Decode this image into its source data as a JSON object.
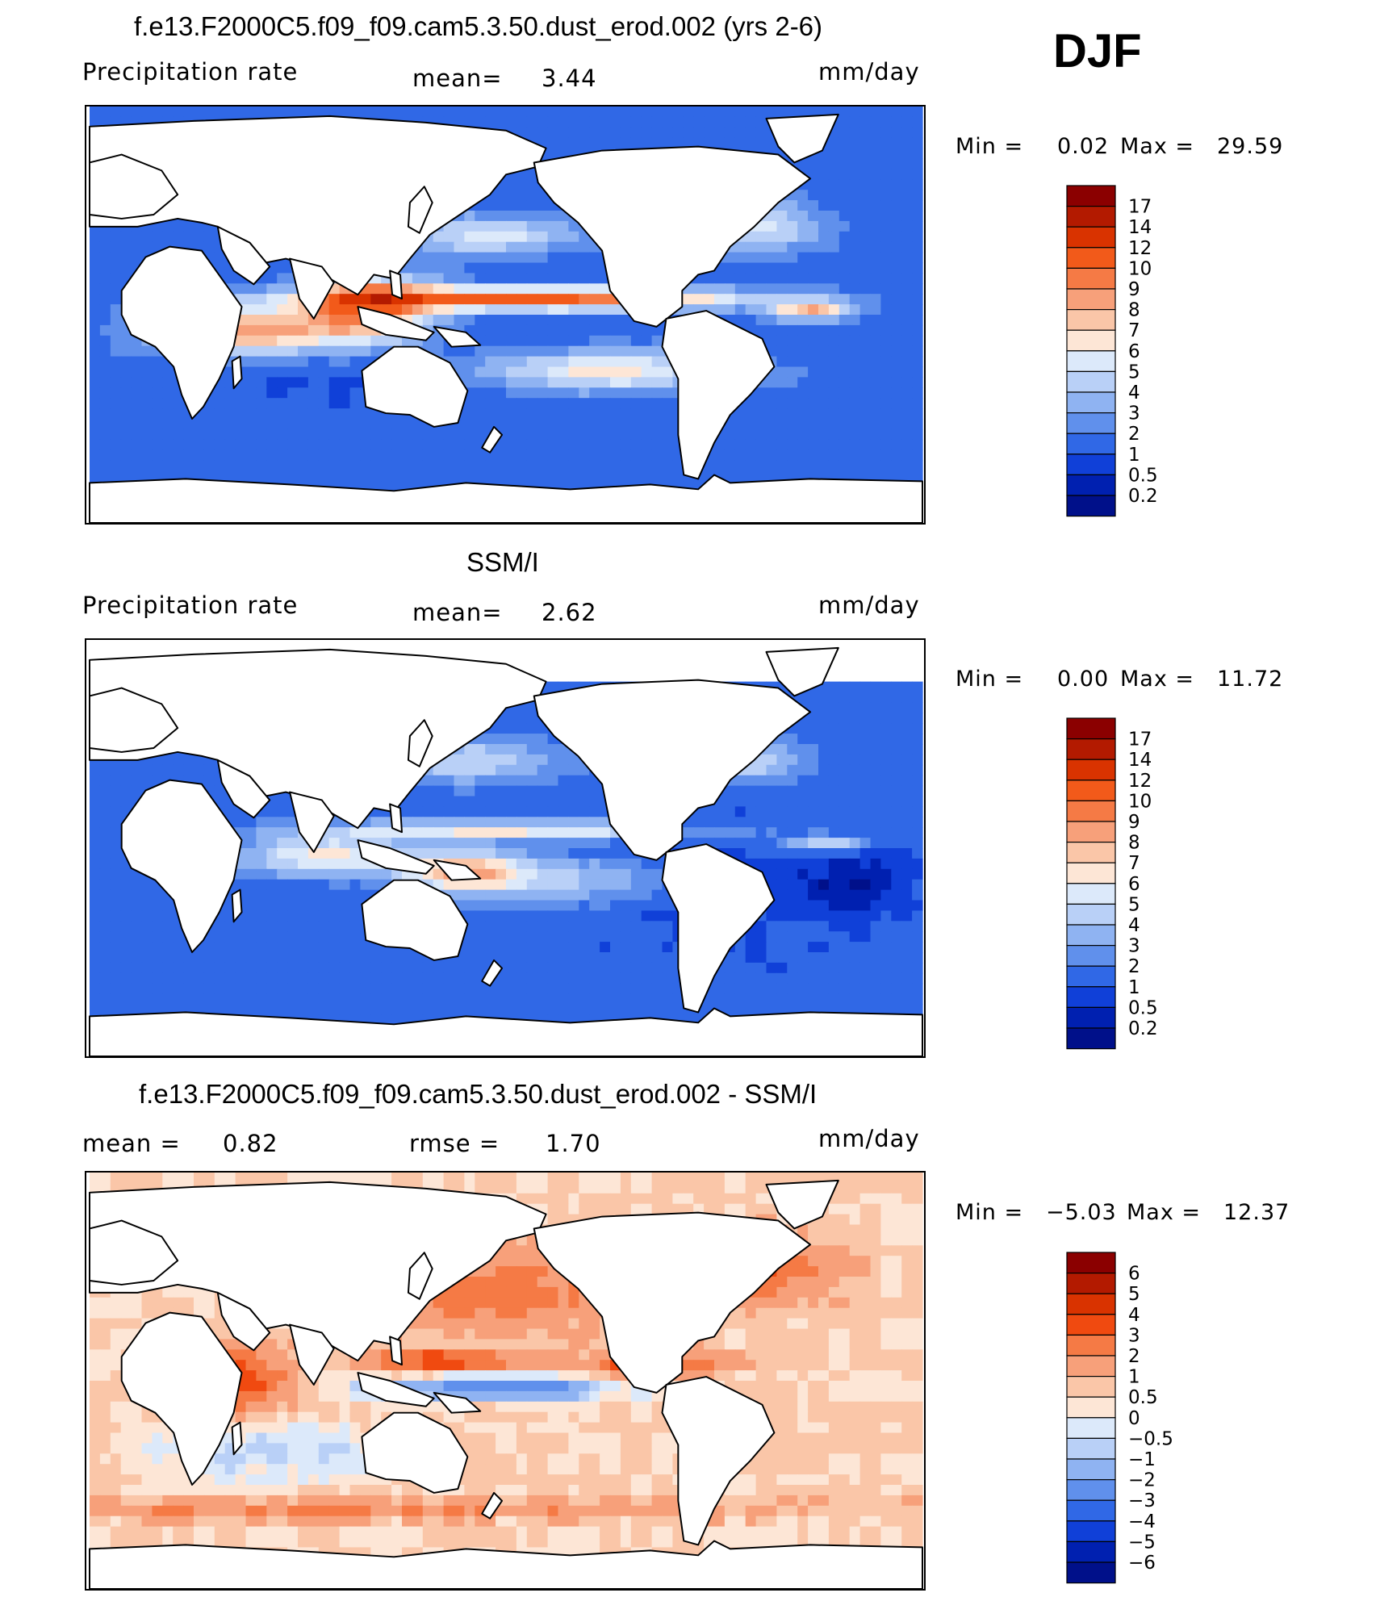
{
  "season": "DJF",
  "panels": [
    {
      "title": "f.e13.F2000C5.f09_f09.cam5.3.50.dust_erod.002 (yrs 2-6)",
      "left_label": "Precipitation rate",
      "mean_label": "mean=",
      "mean_value": "3.44",
      "units": "mm/day",
      "min_label": "Min =",
      "min_value": "0.02",
      "max_label": "Max =",
      "max_value": "29.59"
    },
    {
      "title": "SSM/I",
      "left_label": "Precipitation rate",
      "mean_label": "mean=",
      "mean_value": "2.62",
      "units": "mm/day",
      "min_label": "Min =",
      "min_value": "0.00",
      "max_label": "Max =",
      "max_value": "11.72"
    },
    {
      "title": "f.e13.F2000C5.f09_f09.cam5.3.50.dust_erod.002 - SSM/I",
      "mean_label": "mean =",
      "mean_value": "0.82",
      "rmse_label": "rmse =",
      "rmse_value": "1.70",
      "units": "mm/day",
      "min_label": "Min =",
      "min_value": "−5.03",
      "max_label": "Max =",
      "max_value": "12.37"
    }
  ],
  "chart_data": [
    {
      "type": "heatmap",
      "title": "f.e13.F2000C5.f09_f09.cam5.3.50.dust_erod.002 (yrs 2-6)",
      "units": "mm/day",
      "mean": 3.44,
      "min": 0.02,
      "max": 29.59,
      "colorbar_levels": [
        "17",
        "14",
        "12",
        "10",
        "9",
        "8",
        "7",
        "6",
        "5",
        "4",
        "3",
        "2",
        "1",
        "0.5",
        "0.2"
      ],
      "colorbar_colors": [
        "#8b0000",
        "#b31a00",
        "#d93300",
        "#f25a1a",
        "#f57a45",
        "#f7a07a",
        "#fac6a8",
        "#fde6d6",
        "#dce9fa",
        "#b9d0f7",
        "#8fb3f2",
        "#6090ec",
        "#3068e6",
        "#1040d8",
        "#0020b0",
        "#00108a"
      ]
    },
    {
      "type": "heatmap",
      "title": "SSM/I",
      "units": "mm/day",
      "mean": 2.62,
      "min": 0.0,
      "max": 11.72,
      "colorbar_levels": [
        "17",
        "14",
        "12",
        "10",
        "9",
        "8",
        "7",
        "6",
        "5",
        "4",
        "3",
        "2",
        "1",
        "0.5",
        "0.2"
      ],
      "colorbar_colors": [
        "#8b0000",
        "#b31a00",
        "#d93300",
        "#f25a1a",
        "#f57a45",
        "#f7a07a",
        "#fac6a8",
        "#fde6d6",
        "#dce9fa",
        "#b9d0f7",
        "#8fb3f2",
        "#6090ec",
        "#3068e6",
        "#1040d8",
        "#0020b0",
        "#00108a"
      ]
    },
    {
      "type": "heatmap",
      "title": "f.e13.F2000C5.f09_f09.cam5.3.50.dust_erod.002 - SSM/I",
      "units": "mm/day",
      "mean": 0.82,
      "rmse": 1.7,
      "min": -5.03,
      "max": 12.37,
      "colorbar_levels": [
        "6",
        "5",
        "4",
        "3",
        "2",
        "1",
        "0.5",
        "0",
        "−0.5",
        "−1",
        "−2",
        "−3",
        "−4",
        "−5",
        "−6"
      ],
      "colorbar_colors": [
        "#8b0000",
        "#b31a00",
        "#d93300",
        "#f04a10",
        "#f57a45",
        "#f7a07a",
        "#fac6a8",
        "#fde6d6",
        "#dce9fa",
        "#b9d0f7",
        "#8fb3f2",
        "#6090ec",
        "#3068e6",
        "#1040d8",
        "#0020b0",
        "#00108a"
      ]
    }
  ]
}
